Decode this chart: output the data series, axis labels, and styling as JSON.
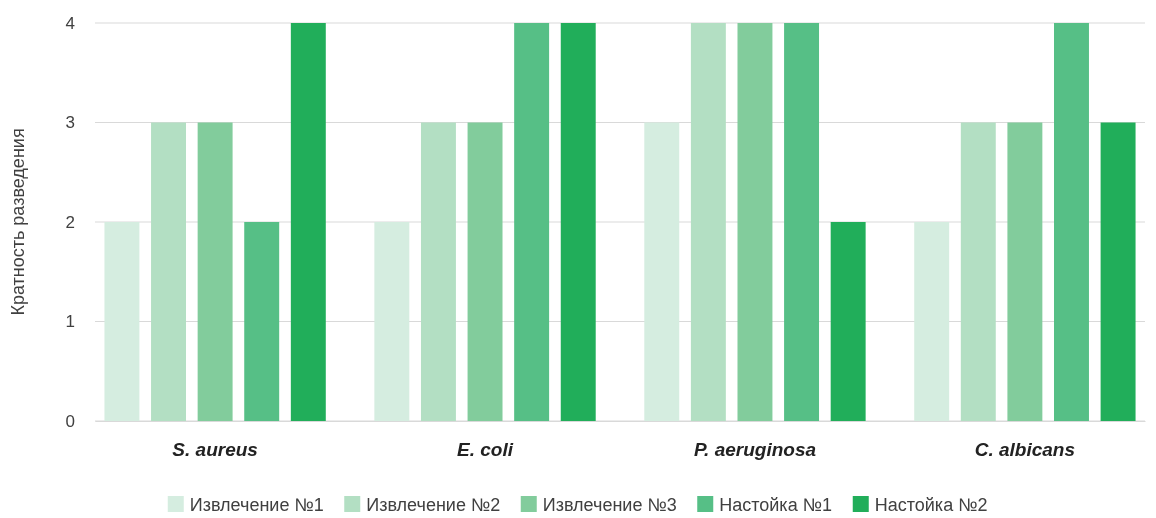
{
  "chart_data": {
    "type": "bar",
    "ylabel": "Кратность разведения",
    "categories": [
      "S. aureus",
      "E. coli",
      "P. aeruginosa",
      "C. albicans"
    ],
    "series": [
      {
        "name": "Извлечение №1",
        "color": "#d5ede0",
        "values": [
          2,
          2,
          3,
          2
        ]
      },
      {
        "name": "Извлечение №2",
        "color": "#b3dfc3",
        "values": [
          3,
          3,
          4,
          3
        ]
      },
      {
        "name": "Извлечение №3",
        "color": "#82cc9c",
        "values": [
          3,
          3,
          4,
          3
        ]
      },
      {
        "name": "Настойка №1",
        "color": "#56bf86",
        "values": [
          2,
          4,
          4,
          4
        ]
      },
      {
        "name": "Настойка №2",
        "color": "#21ae5a",
        "values": [
          4,
          4,
          2,
          3
        ]
      }
    ],
    "ylim": [
      0,
      4
    ],
    "yticks": [
      0,
      1,
      2,
      3,
      4
    ],
    "grid": "y",
    "legend": "bottom"
  }
}
